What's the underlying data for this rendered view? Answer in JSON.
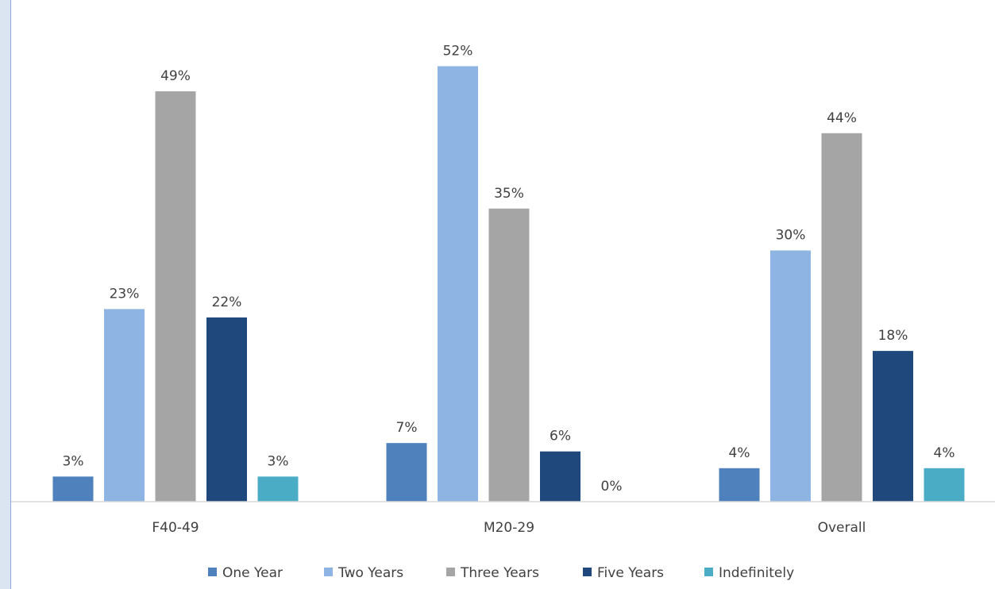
{
  "chart_data": {
    "type": "bar",
    "categories": [
      "F40-49",
      "M20-29",
      "Overall"
    ],
    "series": [
      {
        "name": "One Year",
        "color": "#4f81bd",
        "values": [
          3,
          7,
          4
        ],
        "labels": [
          "3%",
          "7%",
          "4%"
        ]
      },
      {
        "name": "Two Years",
        "color": "#8eb4e3",
        "values": [
          23,
          52,
          30
        ],
        "labels": [
          "23%",
          "52%",
          "30%"
        ]
      },
      {
        "name": "Three Years",
        "color": "#a5a5a5",
        "values": [
          49,
          35,
          44
        ],
        "labels": [
          "49%",
          "35%",
          "44%"
        ]
      },
      {
        "name": "Five Years",
        "color": "#1f497d",
        "values": [
          22,
          6,
          18
        ],
        "labels": [
          "22%",
          "6%",
          "18%"
        ]
      },
      {
        "name": "Indefinitely",
        "color": "#4bacc6",
        "values": [
          3,
          0,
          4
        ],
        "labels": [
          "3%",
          "0%",
          "4%"
        ]
      }
    ],
    "ylim": [
      0,
      55
    ],
    "grid": false,
    "legend": "bottom",
    "title": "",
    "xlabel": "",
    "ylabel": ""
  }
}
